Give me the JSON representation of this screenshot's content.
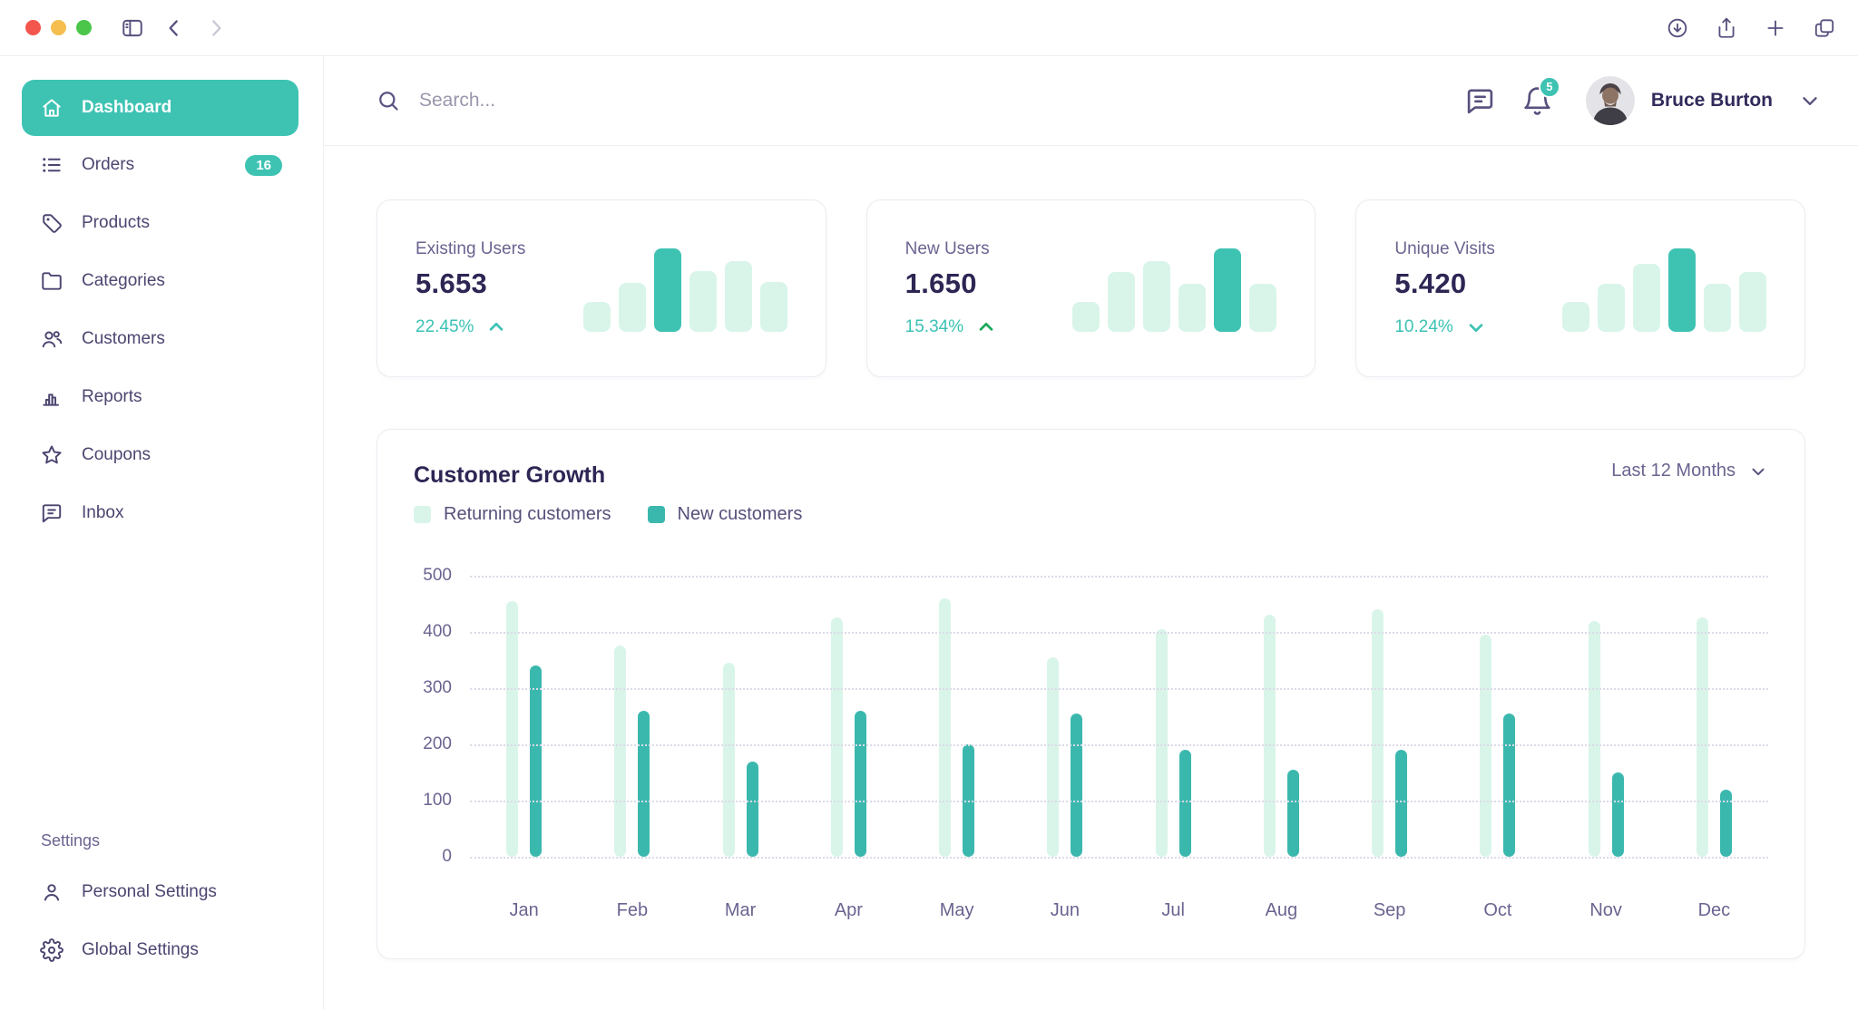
{
  "sidebar": {
    "items": [
      {
        "label": "Dashboard",
        "icon": "home",
        "active": true
      },
      {
        "label": "Orders",
        "icon": "list",
        "badge": "16"
      },
      {
        "label": "Products",
        "icon": "tag"
      },
      {
        "label": "Categories",
        "icon": "folder"
      },
      {
        "label": "Customers",
        "icon": "users"
      },
      {
        "label": "Reports",
        "icon": "bar-chart"
      },
      {
        "label": "Coupons",
        "icon": "star"
      },
      {
        "label": "Inbox",
        "icon": "message"
      }
    ],
    "settings_label": "Settings",
    "settings_items": [
      {
        "label": "Personal Settings",
        "icon": "person"
      },
      {
        "label": "Global Settings",
        "icon": "gear"
      }
    ]
  },
  "header": {
    "search_placeholder": "Search...",
    "notification_count": "5",
    "user_name": "Bruce Burton"
  },
  "stats": [
    {
      "label": "Existing Users",
      "value": "5.653",
      "change": "22.45%",
      "direction": "up",
      "arrow_color": "#3BC2B4",
      "bars": [
        0.36,
        0.59,
        1,
        0.73,
        0.85,
        0.6
      ],
      "highlight_index": 2
    },
    {
      "label": "New Users",
      "value": "1.650",
      "change": "15.34%",
      "direction": "up",
      "arrow_color": "#17A95B",
      "bars": [
        0.36,
        0.72,
        0.85,
        0.58,
        1,
        0.58
      ],
      "highlight_index": 4
    },
    {
      "label": "Unique Visits",
      "value": "5.420",
      "change": "10.24%",
      "direction": "down",
      "arrow_color": "#3BC2B4",
      "bars": [
        0.36,
        0.58,
        0.81,
        1,
        0.58,
        0.72
      ],
      "highlight_index": 3
    }
  ],
  "chart_data": {
    "type": "bar",
    "title": "Customer Growth",
    "period_selector": "Last 12 Months",
    "categories": [
      "Jan",
      "Feb",
      "Mar",
      "Apr",
      "May",
      "Jun",
      "Jul",
      "Aug",
      "Sep",
      "Oct",
      "Nov",
      "Dec"
    ],
    "series": [
      {
        "name": "Returning customers",
        "color": "#D9F5E9",
        "values": [
          455,
          375,
          345,
          425,
          460,
          355,
          405,
          430,
          440,
          395,
          420,
          425
        ]
      },
      {
        "name": "New customers",
        "color": "#3BB8AE",
        "values": [
          340,
          260,
          170,
          260,
          200,
          255,
          190,
          155,
          190,
          255,
          150,
          120
        ]
      }
    ],
    "y_ticks": [
      500,
      400,
      300,
      200,
      100,
      0
    ],
    "ylim": [
      0,
      500
    ],
    "grid": "horizontal-dotted",
    "legend_position": "top-left"
  },
  "colors": {
    "accent": "#3EC3B3",
    "accent_light": "#D9F5E9",
    "text_dark": "#2D2654",
    "text_muted": "#6A6490",
    "text_nav": "#4B4570"
  }
}
